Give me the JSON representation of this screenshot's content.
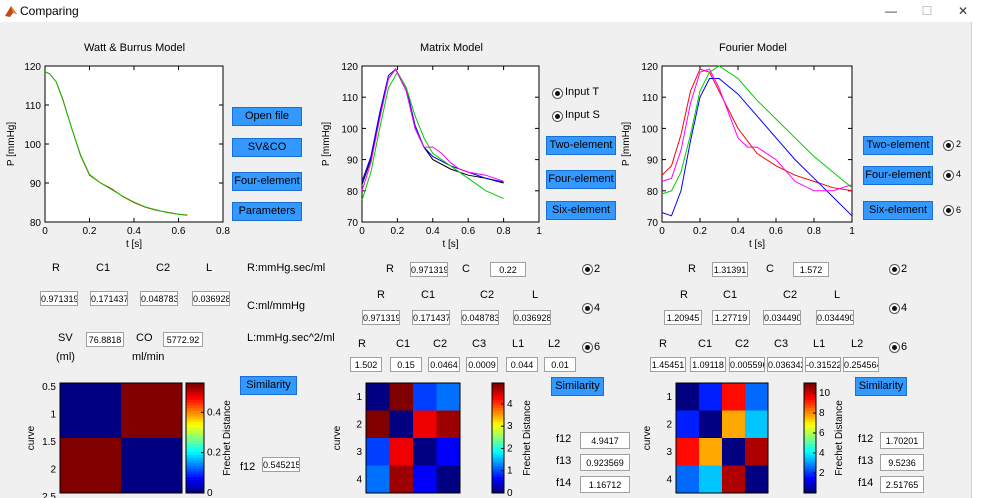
{
  "window": {
    "title": "Comparing",
    "min": "—",
    "max": "☐",
    "close": "✕"
  },
  "colors": {
    "button": "#3399ff",
    "curve_red": "#ff0000",
    "curve_green": "#00cc00",
    "curve_blue": "#0000ff",
    "curve_magenta": "#ff00ff",
    "curve_black": "#000000"
  },
  "panel1": {
    "title": "Watt & Burrus Model",
    "buttons": {
      "open_file": "Open file",
      "svco": "SV&CO",
      "four_element": "Four-element",
      "parameters": "Parameters"
    },
    "params": {
      "header_r": "R",
      "header_c1": "C1",
      "header_c2": "C2",
      "header_l": "L",
      "r": "0.971319",
      "c1": "0.171437",
      "c2": "0.048783",
      "l": "0.036928",
      "sv_label": "SV",
      "sv_unit": "(ml)",
      "sv": "76.8818",
      "co_label": "CO",
      "co_unit": "ml/min",
      "co": "5772.92"
    },
    "units": {
      "r": "R:mmHg.sec/ml",
      "c": "C:ml/mmHg",
      "l": "L:mmHg.sec^2/ml"
    },
    "similarity": {
      "button": "Similarity",
      "f12_label": "f12",
      "f12": "0.545215"
    }
  },
  "panel2": {
    "title": "Matrix Model",
    "radios": {
      "input_t": "Input T",
      "input_s": "Input S"
    },
    "buttons": {
      "two_element": "Two-element",
      "four_element": "Four-element",
      "six_element": "Six-element"
    },
    "two": {
      "r_label": "R",
      "r": "0.971319",
      "c_label": "C",
      "c": "0.22",
      "radio": "2"
    },
    "four": {
      "r_label": "R",
      "c1_label": "C1",
      "c2_label": "C2",
      "l_label": "L",
      "r": "0.971319",
      "c1": "0.171437",
      "c2": "0.048783",
      "l": "0.036928",
      "radio": "4"
    },
    "six": {
      "r_label": "R",
      "c1_label": "C1",
      "c2_label": "C2",
      "c3_label": "C3",
      "l1_label": "L1",
      "l2_label": "L2",
      "r": "1.502",
      "c1": "0.15",
      "c2": "0.0464",
      "c3": "0.0009",
      "l1": "0.044",
      "l2": "0.01",
      "radio": "6"
    },
    "similarity": {
      "button": "Similarity",
      "f12_label": "f12",
      "f12": "4.9417",
      "f13_label": "f13",
      "f13": "0.923569",
      "f14_label": "f14",
      "f14": "1.16712"
    }
  },
  "panel3": {
    "title": "Fourier Model",
    "buttons": {
      "two_element": "Two-element",
      "four_element": "Four-element",
      "six_element": "Six-element"
    },
    "side_radios": {
      "r2": "2",
      "r4": "4",
      "r6": "6"
    },
    "two": {
      "r_label": "R",
      "r": "1.31391",
      "c_label": "C",
      "c": "1.572",
      "radio": "2"
    },
    "four": {
      "r_label": "R",
      "c1_label": "C1",
      "c2_label": "C2",
      "l_label": "L",
      "r": "1.20945",
      "c1": "1.27719",
      "c2": "0.034490",
      "l": "0.034490",
      "radio": "4"
    },
    "six": {
      "r_label": "R",
      "c1_label": "C1",
      "c2_label": "C2",
      "c3_label": "C3",
      "l1_label": "L1",
      "l2_label": "L2",
      "r": "1.45451",
      "c1": "1.09118",
      "c2": "0.005596",
      "c3": "0.036342",
      "l1": "-0.31522",
      "l2": "0.254564",
      "radio": "6"
    },
    "similarity": {
      "button": "Similarity",
      "f12_label": "f12",
      "f12": "1.70201",
      "f13_label": "f13",
      "f13": "9.5236",
      "f14_label": "f14",
      "f14": "2.51765"
    }
  },
  "chart_data": [
    {
      "type": "line",
      "title": "Watt & Burrus Model",
      "xlabel": "t [s]",
      "ylabel": "P [mmHg]",
      "xlim": [
        0,
        0.8
      ],
      "ylim": [
        80,
        120
      ],
      "xticks": [
        "0",
        "0.2",
        "0.4",
        "0.6",
        "0.8"
      ],
      "yticks": [
        "80",
        "90",
        "100",
        "110",
        "120"
      ],
      "series": [
        {
          "color": "#ff0000",
          "x": [
            0,
            0.02,
            0.05,
            0.08,
            0.12,
            0.16,
            0.2,
            0.25,
            0.3,
            0.35,
            0.4,
            0.45,
            0.5,
            0.55,
            0.6,
            0.64
          ],
          "y": [
            118.5,
            118,
            116,
            111.5,
            104,
            97,
            92,
            90,
            88.5,
            86.5,
            85,
            83.8,
            83,
            82.5,
            82,
            81.8
          ]
        },
        {
          "color": "#00cc00",
          "x": [
            0,
            0.02,
            0.05,
            0.08,
            0.12,
            0.16,
            0.2,
            0.25,
            0.3,
            0.35,
            0.4,
            0.45,
            0.5,
            0.55,
            0.6,
            0.64
          ],
          "y": [
            118.5,
            118,
            116,
            111.3,
            104,
            97.2,
            92.2,
            90,
            88.3,
            86.6,
            85.1,
            83.9,
            83.1,
            82.4,
            82,
            81.7
          ]
        }
      ]
    },
    {
      "type": "line",
      "title": "Matrix Model",
      "xlabel": "t [s]",
      "ylabel": "P [mmHg]",
      "xlim": [
        0,
        1
      ],
      "ylim": [
        70,
        120
      ],
      "xticks": [
        "0",
        "0.2",
        "0.4",
        "0.6",
        "0.8",
        "1"
      ],
      "yticks": [
        "70",
        "80",
        "90",
        "100",
        "110",
        "120"
      ],
      "series": [
        {
          "color": "#000000",
          "x": [
            0,
            0.05,
            0.1,
            0.15,
            0.19,
            0.25,
            0.3,
            0.35,
            0.4,
            0.5,
            0.6,
            0.7,
            0.8
          ],
          "y": [
            82,
            90,
            104,
            116,
            119,
            112,
            100,
            94,
            90,
            87,
            85,
            84,
            82.5
          ]
        },
        {
          "color": "#0000ff",
          "x": [
            0,
            0.05,
            0.1,
            0.15,
            0.19,
            0.25,
            0.3,
            0.35,
            0.4,
            0.5,
            0.6,
            0.7,
            0.8
          ],
          "y": [
            83,
            91,
            105,
            117,
            119,
            113,
            101,
            94,
            91,
            88,
            86,
            84,
            82.8
          ]
        },
        {
          "color": "#00cc00",
          "x": [
            0,
            0.05,
            0.1,
            0.15,
            0.2,
            0.25,
            0.3,
            0.35,
            0.4,
            0.5,
            0.6,
            0.7,
            0.8
          ],
          "y": [
            77,
            86,
            100,
            113,
            118,
            113,
            104,
            97,
            92,
            88,
            84,
            80,
            77.5
          ]
        },
        {
          "color": "#ff00ff",
          "x": [
            0,
            0.05,
            0.1,
            0.15,
            0.19,
            0.25,
            0.3,
            0.35,
            0.4,
            0.45,
            0.5,
            0.55,
            0.6,
            0.7,
            0.8
          ],
          "y": [
            80,
            89,
            103,
            116,
            119,
            112,
            100,
            94,
            94,
            92,
            89,
            87,
            86,
            85,
            83
          ]
        }
      ]
    },
    {
      "type": "line",
      "title": "Fourier Model",
      "xlabel": "t [s]",
      "ylabel": "P [mmHg]",
      "xlim": [
        0,
        1
      ],
      "ylim": [
        70,
        120
      ],
      "xticks": [
        "0",
        "0.2",
        "0.4",
        "0.6",
        "0.8",
        "1"
      ],
      "yticks": [
        "70",
        "80",
        "90",
        "100",
        "110",
        "120"
      ],
      "series": [
        {
          "color": "#ff0000",
          "x": [
            0,
            0.05,
            0.1,
            0.15,
            0.2,
            0.25,
            0.3,
            0.4,
            0.5,
            0.6,
            0.7,
            0.8,
            0.9,
            1
          ],
          "y": [
            85,
            88,
            98,
            112,
            119,
            118,
            112,
            100,
            92,
            88,
            85,
            83,
            81,
            80
          ]
        },
        {
          "color": "#00cc00",
          "x": [
            0,
            0.05,
            0.1,
            0.15,
            0.2,
            0.25,
            0.3,
            0.4,
            0.5,
            0.6,
            0.7,
            0.8,
            0.9,
            1
          ],
          "y": [
            79,
            80,
            86,
            98,
            112,
            118,
            120,
            116,
            109,
            103,
            97,
            91,
            86,
            81
          ]
        },
        {
          "color": "#0000ff",
          "x": [
            0,
            0.05,
            0.1,
            0.15,
            0.2,
            0.25,
            0.3,
            0.4,
            0.5,
            0.6,
            0.7,
            0.8,
            0.9,
            1
          ],
          "y": [
            73,
            72,
            80,
            96,
            110,
            116,
            116,
            111,
            104,
            97,
            90,
            84,
            78,
            72
          ]
        },
        {
          "color": "#ff00ff",
          "x": [
            0,
            0.05,
            0.1,
            0.15,
            0.2,
            0.25,
            0.3,
            0.4,
            0.45,
            0.5,
            0.6,
            0.7,
            0.8,
            0.9,
            1
          ],
          "y": [
            83,
            84,
            93,
            108,
            118,
            119,
            113,
            97,
            94,
            94,
            90,
            83,
            80,
            80,
            82
          ]
        }
      ]
    },
    {
      "type": "heatmap",
      "ylabel": "curve",
      "colorbar_label": "Frechet Distance",
      "yticks": [
        "0.5",
        "1",
        "1.5",
        "2",
        "2.5"
      ],
      "colorbar_ticks": [
        "0",
        "0.2",
        "0.4"
      ],
      "clim": [
        0,
        0.545
      ],
      "rows": [
        "1",
        "2"
      ],
      "values": [
        [
          0,
          0.545215
        ],
        [
          0.545215,
          0
        ]
      ]
    },
    {
      "type": "heatmap",
      "ylabel": "curve",
      "colorbar_label": "Frechet Distance",
      "yticks": [
        "1",
        "2",
        "3",
        "4"
      ],
      "colorbar_ticks": [
        "0",
        "1",
        "2",
        "3",
        "4"
      ],
      "clim": [
        0,
        4.9417
      ],
      "values": [
        [
          0,
          4.9417,
          0.923569,
          1.16712
        ],
        [
          4.9417,
          0,
          4.4,
          4.8
        ],
        [
          0.923569,
          4.4,
          0,
          0.6
        ],
        [
          1.16712,
          4.8,
          0.6,
          0
        ]
      ]
    },
    {
      "type": "heatmap",
      "ylabel": "curve",
      "colorbar_label": "Frechet Distance",
      "yticks": [
        "1",
        "2",
        "3",
        "4"
      ],
      "colorbar_ticks": [
        "2",
        "4",
        "6",
        "8",
        "10"
      ],
      "clim": [
        0,
        11
      ],
      "values": [
        [
          0,
          1.70201,
          9.5236,
          2.51765
        ],
        [
          1.70201,
          0,
          7.8,
          3.5
        ],
        [
          9.5236,
          7.8,
          0,
          10.5
        ],
        [
          2.51765,
          3.5,
          10.5,
          0
        ]
      ]
    }
  ]
}
